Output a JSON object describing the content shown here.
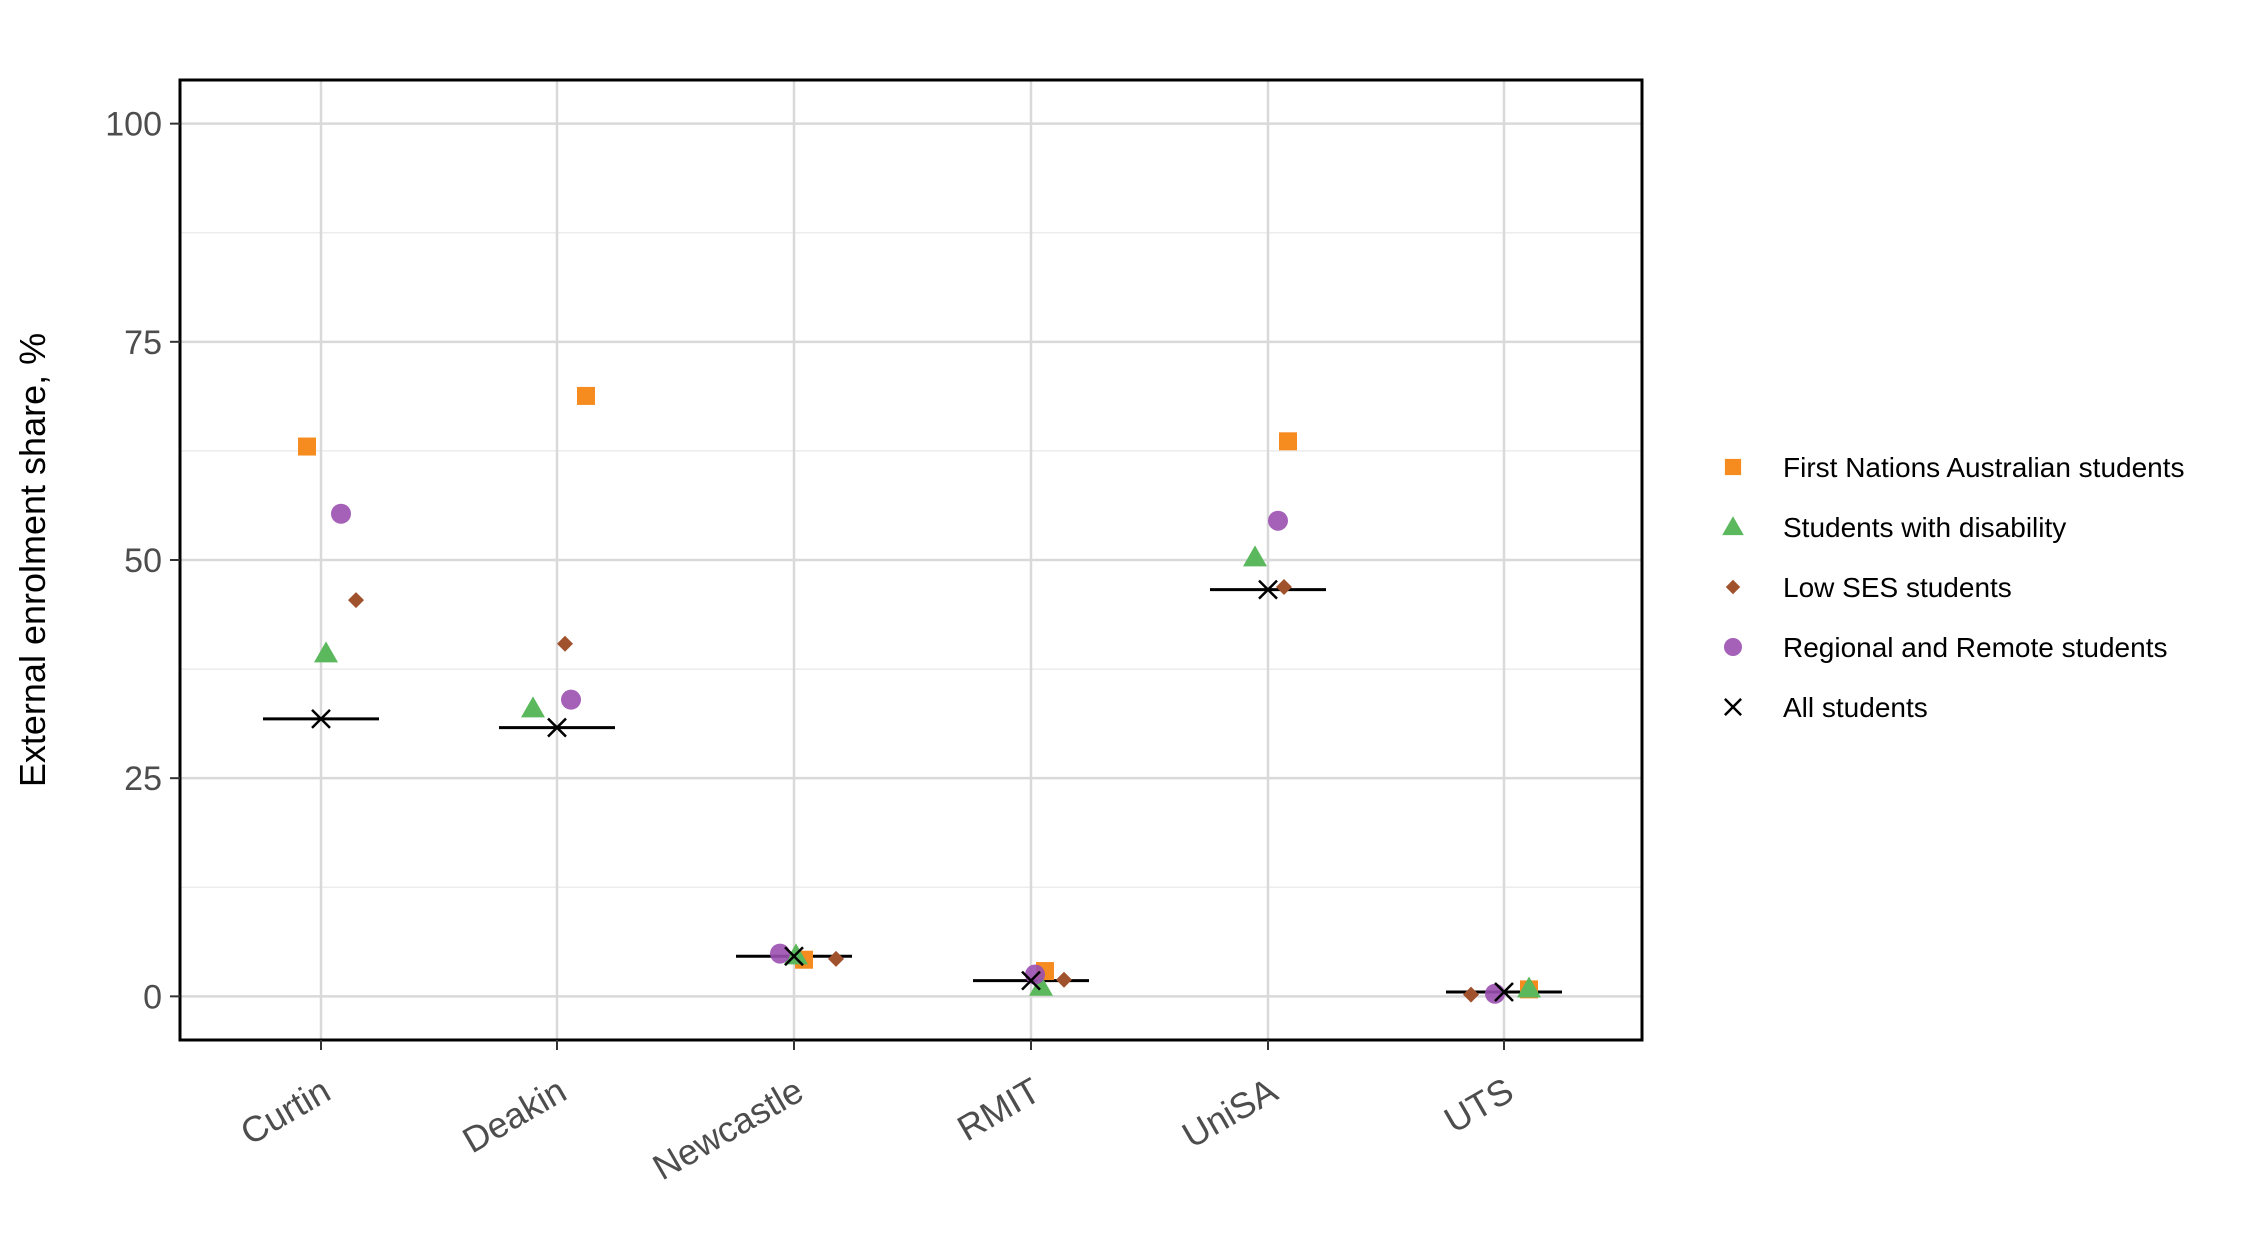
{
  "chart_data": {
    "type": "scatter",
    "title": "",
    "xlabel": "",
    "ylabel": "External enrolment share, %",
    "categories": [
      "Curtin",
      "Deakin",
      "Newcastle",
      "RMIT",
      "UniSA",
      "UTS"
    ],
    "ylim": [
      -5,
      105
    ],
    "yticks": [
      0,
      25,
      50,
      75,
      100
    ],
    "grid": true,
    "legend_position": "right",
    "series": [
      {
        "name": "First Nations Australian students",
        "marker": "square",
        "color": "#F68B1F",
        "values": [
          63.0,
          68.8,
          4.2,
          2.9,
          63.6,
          0.8
        ]
      },
      {
        "name": "Students with disability",
        "marker": "triangle",
        "color": "#5CB85C",
        "values": [
          39.3,
          33.0,
          4.7,
          1.1,
          50.3,
          0.9
        ]
      },
      {
        "name": "Low SES students",
        "marker": "diamond",
        "color": "#A0522D",
        "values": [
          45.4,
          40.4,
          4.3,
          1.9,
          46.9,
          0.2
        ]
      },
      {
        "name": "Regional and Remote students",
        "marker": "circle",
        "color": "#9B4FB0",
        "values": [
          55.3,
          34.0,
          4.9,
          2.5,
          54.5,
          0.3
        ]
      },
      {
        "name": "All students",
        "marker": "x",
        "color": "#000000",
        "values": [
          31.8,
          30.8,
          4.6,
          1.8,
          46.6,
          0.5
        ]
      }
    ]
  }
}
